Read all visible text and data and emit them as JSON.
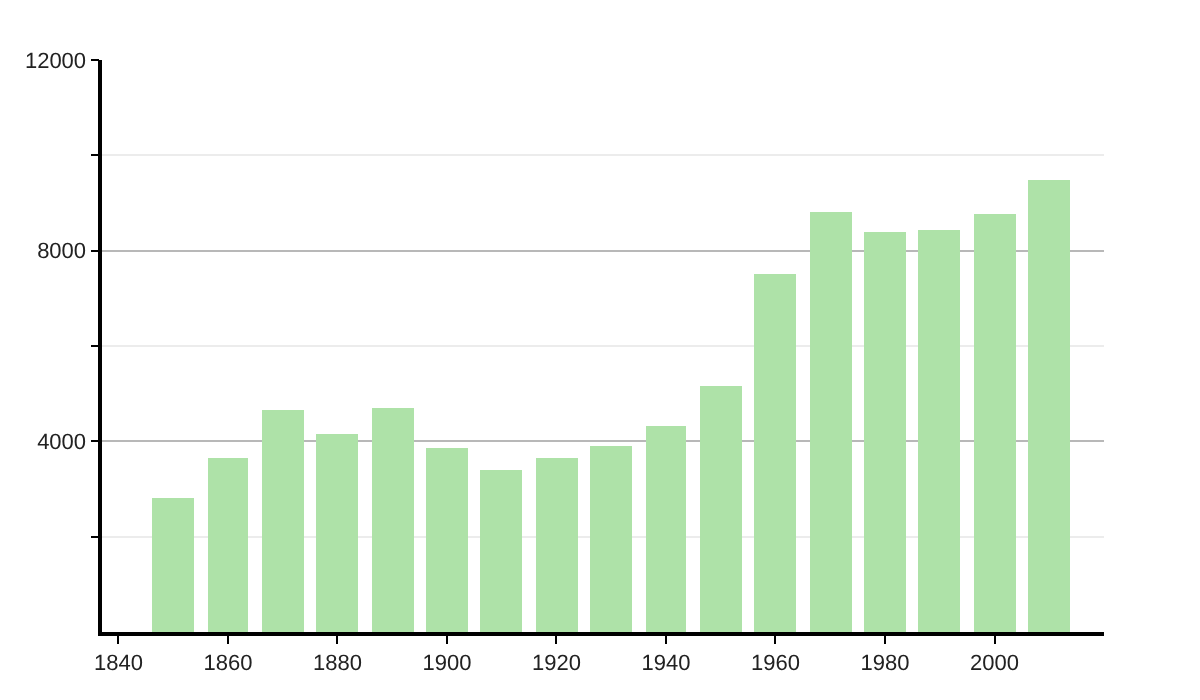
{
  "chart_data": {
    "type": "bar",
    "x": [
      1850,
      1860,
      1870,
      1880,
      1890,
      1900,
      1910,
      1920,
      1930,
      1940,
      1950,
      1960,
      1970,
      1980,
      1990,
      2000,
      2010
    ],
    "values": [
      2830,
      3650,
      4670,
      4160,
      4690,
      3860,
      3400,
      3650,
      3900,
      4330,
      5180,
      7510,
      8810,
      8390,
      8420,
      8750,
      9500
    ],
    "color": "#aee2a8",
    "xlim": [
      1837,
      2020
    ],
    "xticks": [
      1840,
      1860,
      1880,
      1900,
      1920,
      1940,
      1960,
      1980,
      2000
    ],
    "ylim": [
      0,
      12000
    ],
    "yticks": [
      {
        "value": 2000,
        "label": null
      },
      4000,
      {
        "value": 6000,
        "label": null
      },
      8000,
      {
        "value": 10000,
        "label": null
      },
      12000
    ],
    "grid": "y"
  }
}
